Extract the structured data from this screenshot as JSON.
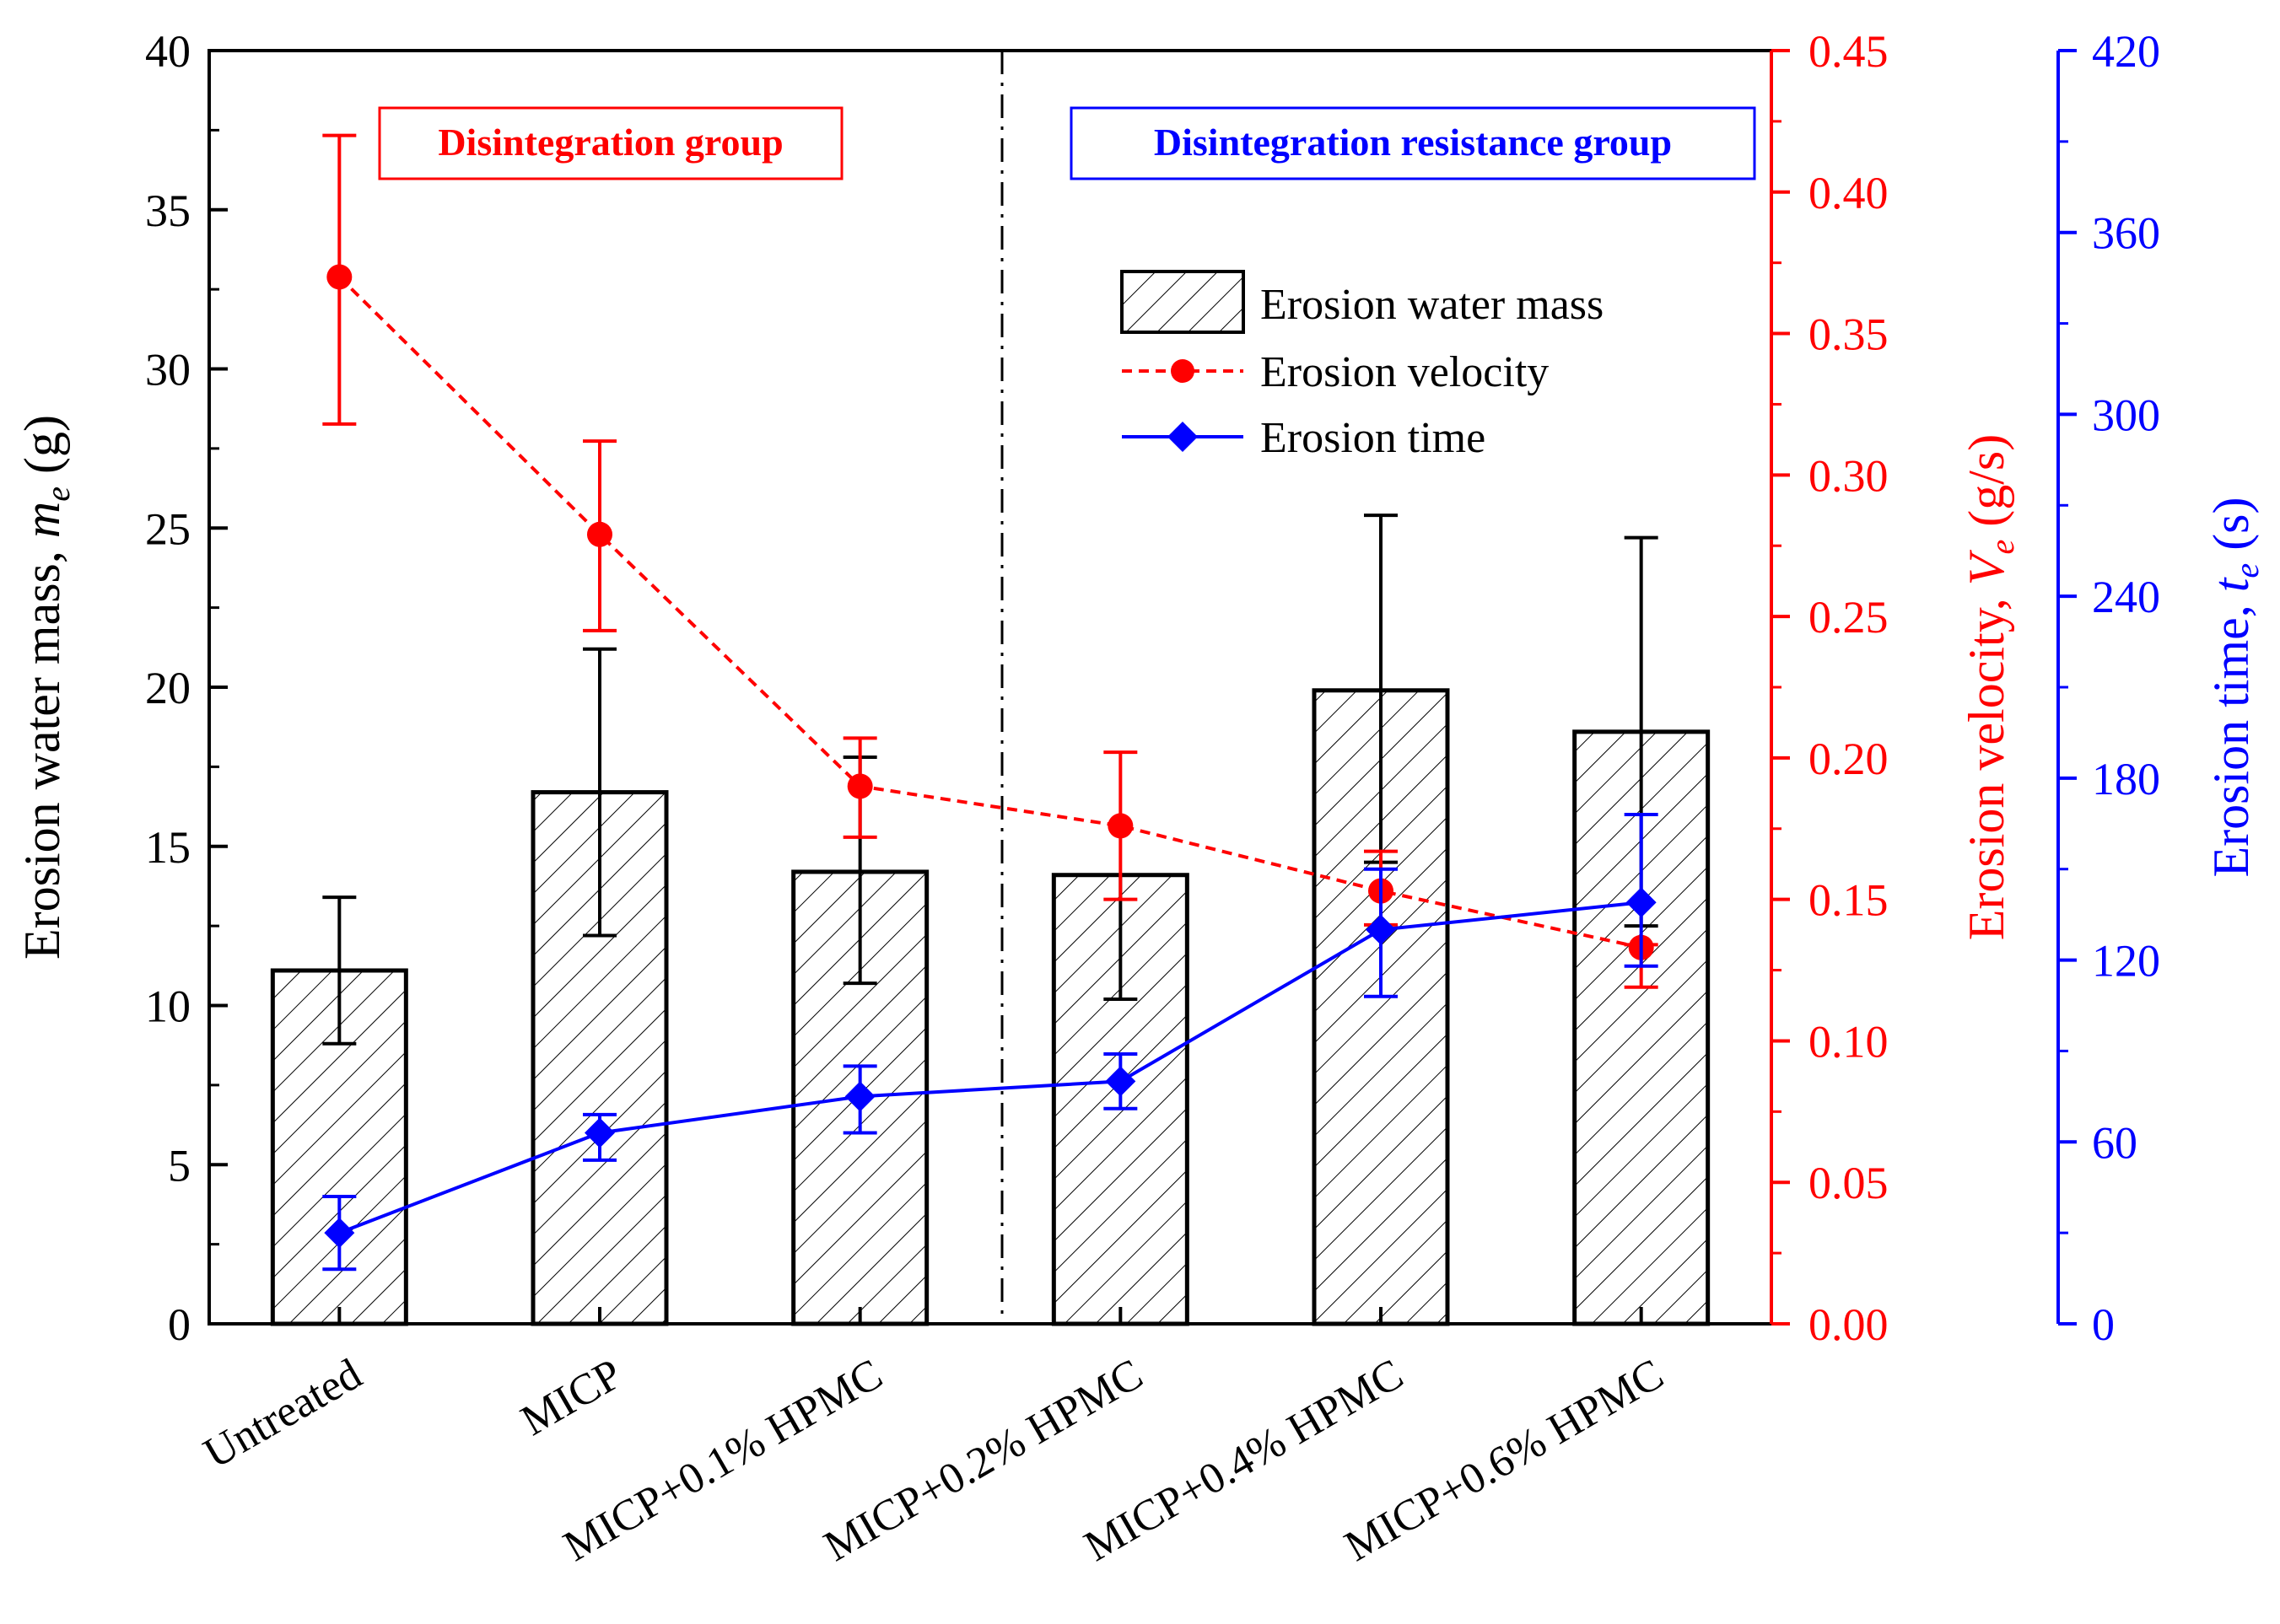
{
  "chart_data": {
    "type": "bar",
    "categories": [
      "Untreated",
      "MICP",
      "MICP+0.1% HPMC",
      "MICP+0.2% HPMC",
      "MICP+0.4% HPMC",
      "MICP+0.6% HPMC"
    ],
    "group_labels": {
      "left": "Disintegration group",
      "right": "Disintegration resistance group"
    },
    "axes": {
      "left": {
        "label_main": "Erosion water mass, ",
        "label_italic": "m",
        "label_sub": "e",
        "label_unit": " (g)",
        "ylim": [
          0,
          40
        ],
        "ticks": [
          0,
          5,
          10,
          15,
          20,
          25,
          30,
          35,
          40
        ],
        "tick_labels": [
          "0",
          "5",
          "10",
          "15",
          "20",
          "25",
          "30",
          "35",
          "40"
        ],
        "color": "#000000"
      },
      "mid": {
        "label_main": "Erosion velocity, ",
        "label_italic": "V",
        "label_sub": "e",
        "label_unit": " (g/s)",
        "ylim": [
          0,
          0.45
        ],
        "ticks": [
          0,
          0.05,
          0.1,
          0.15,
          0.2,
          0.25,
          0.3,
          0.35,
          0.4,
          0.45
        ],
        "tick_labels": [
          "0.00",
          "0.05",
          "0.10",
          "0.15",
          "0.20",
          "0.25",
          "0.30",
          "0.35",
          "0.40",
          "0.45"
        ],
        "color": "#ff0000"
      },
      "right": {
        "label_main": "Erosion time, ",
        "label_italic": "t",
        "label_sub": "e",
        "label_unit": " (s)",
        "ylim": [
          0,
          420
        ],
        "ticks": [
          0,
          60,
          120,
          180,
          240,
          300,
          360,
          420
        ],
        "tick_labels": [
          "0",
          "60",
          "120",
          "180",
          "240",
          "300",
          "360",
          "420"
        ],
        "color": "#0000ff"
      }
    },
    "series": [
      {
        "name": "Erosion water mass",
        "kind": "bar",
        "axis": "left",
        "color": "#000000",
        "values": [
          11.1,
          16.7,
          14.2,
          14.1,
          19.9,
          18.6
        ],
        "err_low": [
          8.8,
          12.2,
          10.7,
          10.2,
          14.5,
          12.5
        ],
        "err_high": [
          13.4,
          21.2,
          17.8,
          14.1,
          25.4,
          24.7
        ]
      },
      {
        "name": "Erosion velocity",
        "kind": "line-dashed",
        "axis": "mid",
        "color": "#ff0000",
        "values": [
          0.37,
          0.279,
          0.19,
          0.176,
          0.153,
          0.133
        ],
        "err_low": [
          0.318,
          0.245,
          0.172,
          0.15,
          0.141,
          0.119
        ],
        "err_high": [
          0.42,
          0.312,
          0.207,
          0.202,
          0.167,
          0.134
        ]
      },
      {
        "name": "Erosion time",
        "kind": "line",
        "axis": "right",
        "color": "#0000ff",
        "values": [
          30,
          63,
          75,
          80,
          130,
          139
        ],
        "err_low": [
          18,
          54,
          63,
          71,
          108,
          118
        ],
        "err_high": [
          42,
          69,
          85,
          89,
          150,
          168
        ]
      }
    ],
    "legend": {
      "placement": "top-center-right"
    }
  }
}
